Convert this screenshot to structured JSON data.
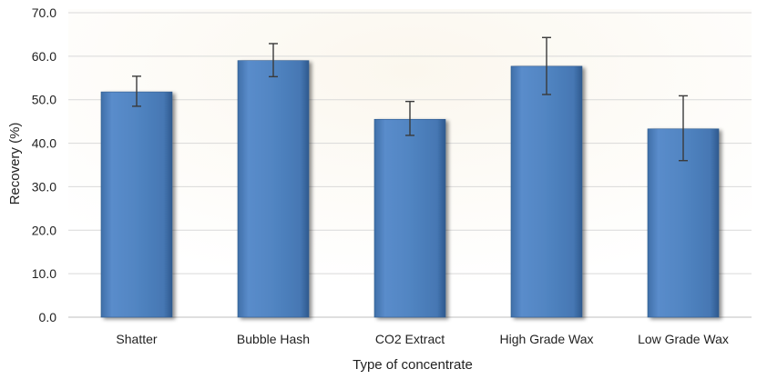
{
  "chart_data": {
    "type": "bar",
    "title": "",
    "xlabel": "Type of concentrate",
    "ylabel": "Recovery (%)",
    "ylim": [
      0,
      70
    ],
    "yticks": [
      "0.0",
      "10.0",
      "20.0",
      "30.0",
      "40.0",
      "50.0",
      "60.0",
      "70.0"
    ],
    "grid": true,
    "categories": [
      "Shatter",
      "Bubble Hash",
      "CO2 Extract",
      "High Grade Wax",
      "Low Grade Wax"
    ],
    "values": [
      51.8,
      59.0,
      45.5,
      57.7,
      43.3
    ],
    "error_low": [
      48.5,
      55.3,
      41.8,
      51.2,
      36.0
    ],
    "error_high": [
      55.4,
      62.9,
      49.6,
      64.3,
      50.9
    ],
    "colors": {
      "bar": "#4f81bd",
      "bar_dark": "#2f5a8e",
      "grid": "#d9d9d9",
      "error": "#3a3a3a"
    }
  }
}
